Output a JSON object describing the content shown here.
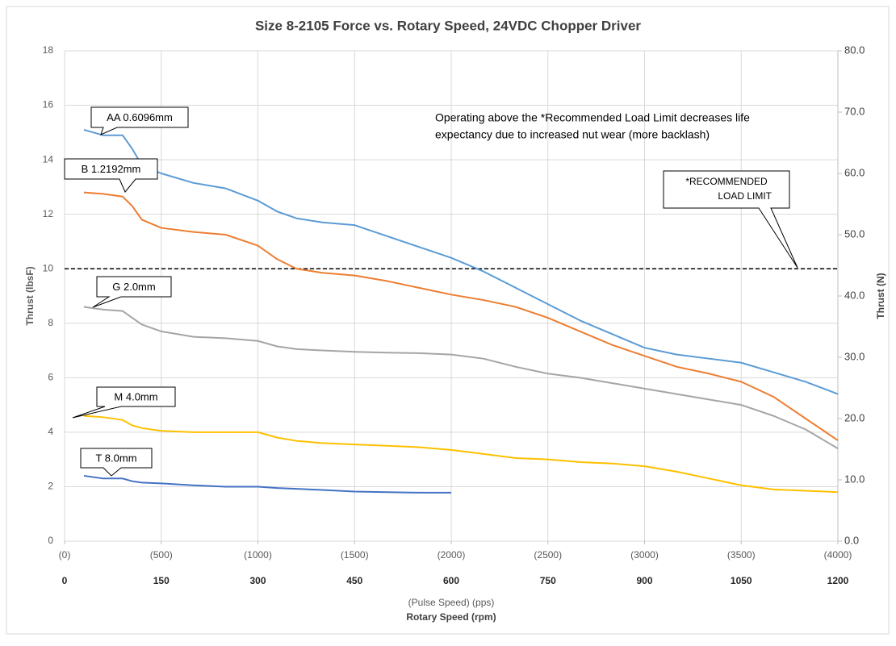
{
  "chart_data": {
    "type": "line",
    "title": "Size 8-2105 Force vs. Rotary Speed, 24VDC Chopper Driver",
    "y_label": "Thrust (lbsF)",
    "y2_label": "Thrust (N)",
    "x2_label": "(Pulse Speed) (pps)",
    "x_label": "Rotary Speed (rpm)",
    "x": [
      30,
      60,
      90,
      105,
      120,
      150,
      200,
      250,
      300,
      330,
      360,
      400,
      450,
      500,
      550,
      600,
      650,
      700,
      750,
      800,
      850,
      900,
      950,
      1000,
      1050,
      1100,
      1150,
      1200
    ],
    "xlim": [
      0,
      1200
    ],
    "xticks": [
      0,
      150,
      300,
      450,
      600,
      750,
      900,
      1050,
      1200
    ],
    "x2lim": [
      0,
      4000
    ],
    "x2ticks": [
      {
        "value": 0,
        "label": "(0)"
      },
      {
        "value": 500,
        "label": "(500)"
      },
      {
        "value": 1000,
        "label": "(1000)"
      },
      {
        "value": 1500,
        "label": "(1500)"
      },
      {
        "value": 2000,
        "label": "(2000)"
      },
      {
        "value": 2500,
        "label": "(2500)"
      },
      {
        "value": 3000,
        "label": "(3000)"
      },
      {
        "value": 3500,
        "label": "(3500)"
      },
      {
        "value": 4000,
        "label": "(4000)"
      }
    ],
    "ylim": [
      0,
      18
    ],
    "yticks": [
      0,
      2,
      4,
      6,
      8,
      10,
      12,
      14,
      16,
      18
    ],
    "y2lim": [
      0,
      80
    ],
    "y2ticks": [
      {
        "value": 0,
        "label": "0.0"
      },
      {
        "value": 10,
        "label": "10.0"
      },
      {
        "value": 20,
        "label": "20.0"
      },
      {
        "value": 30,
        "label": "30.0"
      },
      {
        "value": 40,
        "label": "40.0"
      },
      {
        "value": 50,
        "label": "50.0"
      },
      {
        "value": 60,
        "label": "60.0"
      },
      {
        "value": 70,
        "label": "70.0"
      },
      {
        "value": 80,
        "label": "80.0"
      }
    ],
    "grid": true,
    "series": [
      {
        "name": "AA 0.6096mm",
        "color": "#5b9bd5",
        "values": [
          15.1,
          14.9,
          14.9,
          14.4,
          13.8,
          13.5,
          13.15,
          12.95,
          12.5,
          12.1,
          11.85,
          11.7,
          11.6,
          11.2,
          10.8,
          10.4,
          9.9,
          9.3,
          8.7,
          8.1,
          7.6,
          7.1,
          6.85,
          6.7,
          6.55,
          6.2,
          5.85,
          5.4
        ]
      },
      {
        "name": "B 1.2192mm",
        "color": "#ed7d31",
        "values": [
          12.8,
          12.75,
          12.65,
          12.3,
          11.8,
          11.5,
          11.35,
          11.25,
          10.85,
          10.35,
          10.0,
          9.85,
          9.75,
          9.55,
          9.3,
          9.05,
          8.85,
          8.6,
          8.2,
          7.7,
          7.2,
          6.8,
          6.4,
          6.15,
          5.85,
          5.3,
          4.5,
          3.7
        ]
      },
      {
        "name": "G 2.0mm",
        "color": "#a5a5a5",
        "values": [
          8.6,
          8.5,
          8.45,
          8.2,
          7.95,
          7.7,
          7.5,
          7.45,
          7.35,
          7.15,
          7.05,
          7.0,
          6.95,
          6.92,
          6.9,
          6.85,
          6.7,
          6.4,
          6.15,
          6.0,
          5.8,
          5.6,
          5.4,
          5.2,
          5.0,
          4.6,
          4.1,
          3.4
        ]
      },
      {
        "name": "M 4.0mm",
        "color": "#ffc000",
        "values": [
          4.6,
          4.55,
          4.45,
          4.25,
          4.15,
          4.05,
          4.0,
          4.0,
          4.0,
          3.8,
          3.68,
          3.6,
          3.55,
          3.5,
          3.45,
          3.35,
          3.2,
          3.05,
          3.0,
          2.9,
          2.85,
          2.75,
          2.55,
          2.3,
          2.05,
          1.9,
          1.85,
          1.8
        ]
      },
      {
        "name": "T 8.0mm",
        "color": "#4472c4",
        "values": [
          2.4,
          2.3,
          2.3,
          2.2,
          2.15,
          2.12,
          2.05,
          2.0,
          2.0,
          1.95,
          1.92,
          1.88,
          1.82,
          1.8,
          1.78,
          1.78,
          null,
          null,
          null,
          null,
          null,
          null,
          null,
          null,
          null,
          null,
          null,
          null
        ]
      }
    ],
    "limit_line": 10,
    "limit_label": [
      "*RECOMMENDED",
      "LOAD LIMIT"
    ],
    "annotation": [
      "Operating above the *Recommended Load Limit decreases life",
      "expectancy due to increased nut wear (more backlash)"
    ]
  }
}
